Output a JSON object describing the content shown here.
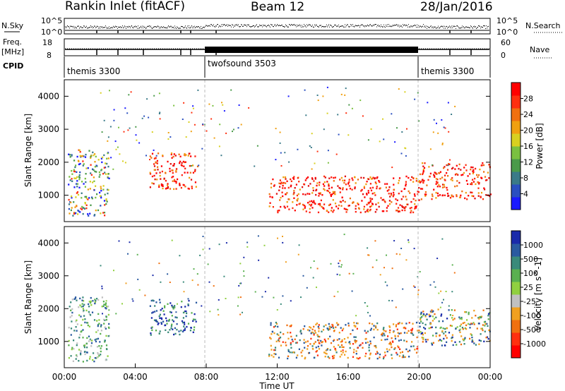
{
  "header": {
    "title": "Rankin Inlet (fitACF)",
    "beam": "Beam 12",
    "date": "28/Jan/2016"
  },
  "strip_labels": {
    "nsky": "N.Sky",
    "nsearch": "N.Search",
    "freq": "Freq.",
    "freq_unit": "[MHz]",
    "nave": "Nave",
    "cpid": "CPID",
    "nsky_ticks": [
      "10^5",
      "10^0"
    ],
    "nsearch_ticks": [
      "10^5",
      "10^0"
    ],
    "freq_ticks": [
      "18",
      "8"
    ],
    "nave_ticks": [
      "60",
      "0"
    ]
  },
  "cpid_segments": [
    {
      "name": "themis 3300",
      "start_hour": 0,
      "end_hour": 8
    },
    {
      "name": "twofsound 3503",
      "start_hour": 8,
      "end_hour": 20
    },
    {
      "name": "themis 3300",
      "start_hour": 20,
      "end_hour": 24
    }
  ],
  "chart_data": [
    {
      "type": "heatmap",
      "name": "power",
      "ylabel": "Slant Range [km]",
      "ylim": [
        200,
        4500
      ],
      "xlim_hours": [
        0,
        24
      ],
      "y_ticks": [
        1000,
        2000,
        3000,
        4000
      ],
      "colorbar": {
        "label": "Power [dB]",
        "ticks": [
          "4",
          "8",
          "12",
          "16",
          "20",
          "24",
          "28"
        ],
        "colors": [
          "#1a1aff",
          "#2a4fc0",
          "#3a7a88",
          "#4a9a4a",
          "#7ac040",
          "#d8d020",
          "#f0a010",
          "#f07010",
          "#ff3010",
          "#ff0000"
        ]
      },
      "regions": [
        {
          "h0": 0.2,
          "h1": 2.5,
          "r0": 400,
          "r1": 2400,
          "level": "mixed"
        },
        {
          "h0": 4.8,
          "h1": 7.5,
          "r0": 1200,
          "r1": 2300,
          "level": "high"
        },
        {
          "h0": 11.5,
          "h1": 20.0,
          "r0": 500,
          "r1": 1600,
          "level": "high"
        },
        {
          "h0": 20.0,
          "h1": 24.0,
          "r0": 900,
          "r1": 2000,
          "level": "high"
        }
      ]
    },
    {
      "type": "heatmap",
      "name": "velocity",
      "ylabel": "Slant Range [km]",
      "xlabel": "Time UT",
      "ylim": [
        200,
        4500
      ],
      "xlim_hours": [
        0,
        24
      ],
      "y_ticks": [
        1000,
        2000,
        3000,
        4000
      ],
      "x_ticks": [
        "00:00",
        "04:00",
        "08:00",
        "12:00",
        "16:00",
        "20:00",
        "00:00"
      ],
      "colorbar": {
        "label": "Velocity [m s^-1]",
        "ticks": [
          "1000",
          "500",
          "100",
          "25",
          "-25",
          "-100",
          "-500",
          "-1000"
        ],
        "colors": [
          "#1a2aaa",
          "#2a5aa0",
          "#3a8a7a",
          "#5ab050",
          "#90d040",
          "#c0c0c0",
          "#f0a020",
          "#f07010",
          "#ff3010",
          "#ff0000"
        ]
      },
      "regions": [
        {
          "h0": 0.2,
          "h1": 2.5,
          "r0": 400,
          "r1": 2400,
          "level": "green"
        },
        {
          "h0": 4.8,
          "h1": 7.5,
          "r0": 1200,
          "r1": 2300,
          "level": "blue"
        },
        {
          "h0": 11.5,
          "h1": 20.0,
          "r0": 500,
          "r1": 1600,
          "level": "orange"
        },
        {
          "h0": 20.0,
          "h1": 24.0,
          "r0": 900,
          "r1": 2000,
          "level": "mixed"
        }
      ]
    }
  ]
}
